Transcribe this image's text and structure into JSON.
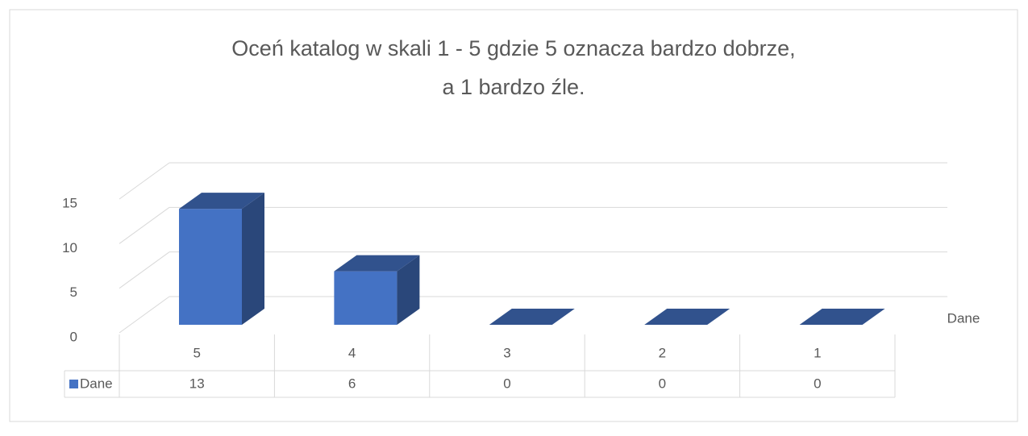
{
  "chart_data": {
    "type": "bar3d",
    "title": [
      "Oceń katalog w skali 1 - 5 gdzie 5 oznacza bardzo dobrze,",
      "a 1 bardzo źle."
    ],
    "categories": [
      "5",
      "4",
      "3",
      "2",
      "1"
    ],
    "series": [
      {
        "name": "Dane",
        "color": "#4472c4",
        "values": [
          13,
          6,
          0,
          0,
          0
        ]
      }
    ],
    "ylim": [
      0,
      15
    ],
    "yticks": [
      0,
      5,
      10,
      15
    ],
    "grid": true,
    "data_table": true
  }
}
